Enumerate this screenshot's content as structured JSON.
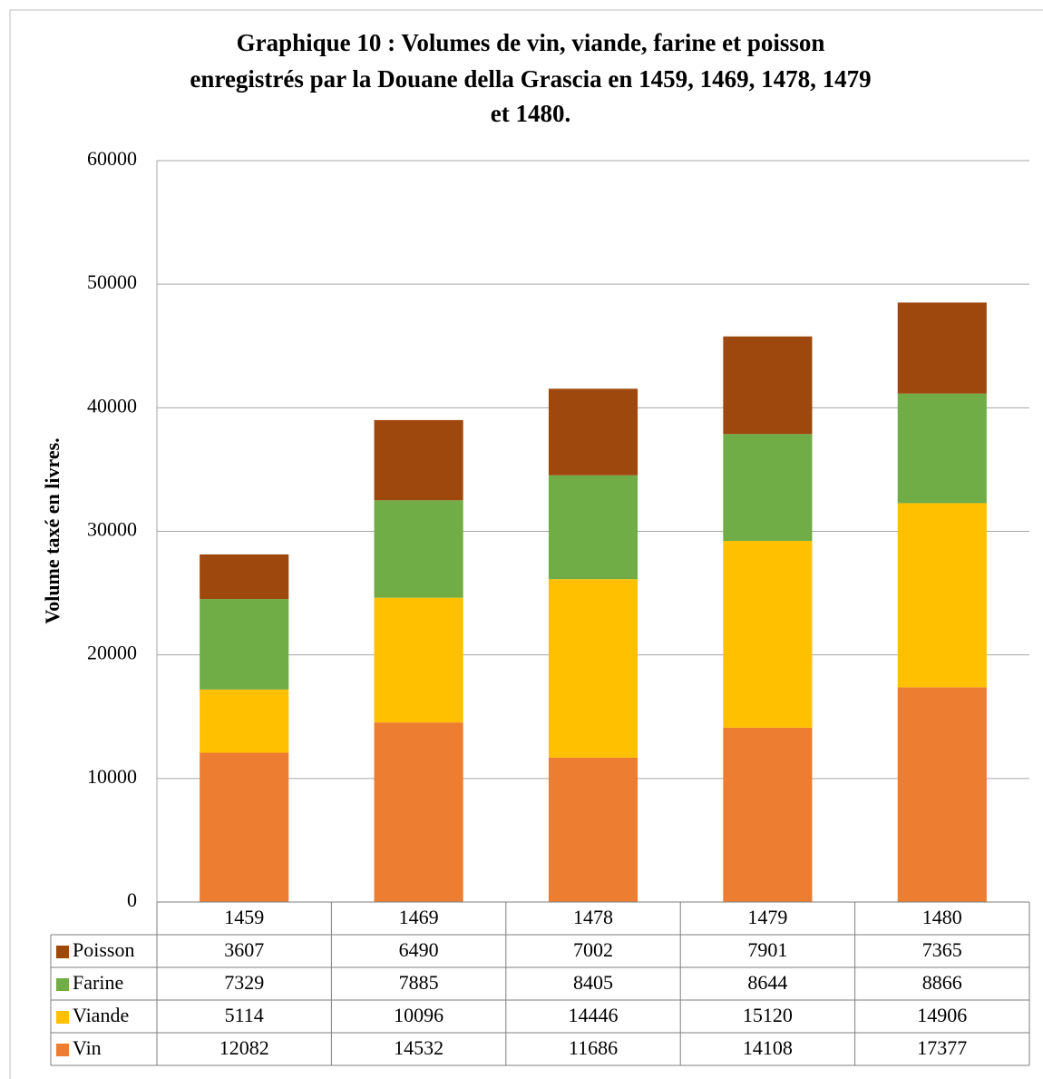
{
  "chart_data": {
    "type": "stacked_bar",
    "title": [
      "Graphique 10 : Volumes de vin, viande, farine et poisson",
      "enregistrés par la Douane della Grascia en 1459, 1469, 1478, 1479",
      "et 1480."
    ],
    "y_label": "Volume taxé en livres.",
    "categories": [
      "1459",
      "1469",
      "1478",
      "1479",
      "1480"
    ],
    "series": [
      {
        "name": "Vin",
        "color": "#ed7d31",
        "values": [
          12082,
          14532,
          11686,
          14108,
          17377
        ]
      },
      {
        "name": "Viande",
        "color": "#ffc000",
        "values": [
          5114,
          10096,
          14446,
          15120,
          14906
        ]
      },
      {
        "name": "Farine",
        "color": "#70ad47",
        "values": [
          7329,
          7885,
          8405,
          8644,
          8866
        ]
      },
      {
        "name": "Poisson",
        "color": "#9e480e",
        "values": [
          3607,
          6490,
          7002,
          7901,
          7365
        ]
      }
    ],
    "ylim": [
      0,
      60000
    ],
    "yticks": [
      0,
      10000,
      20000,
      30000,
      40000,
      50000,
      60000
    ],
    "grid": true
  }
}
